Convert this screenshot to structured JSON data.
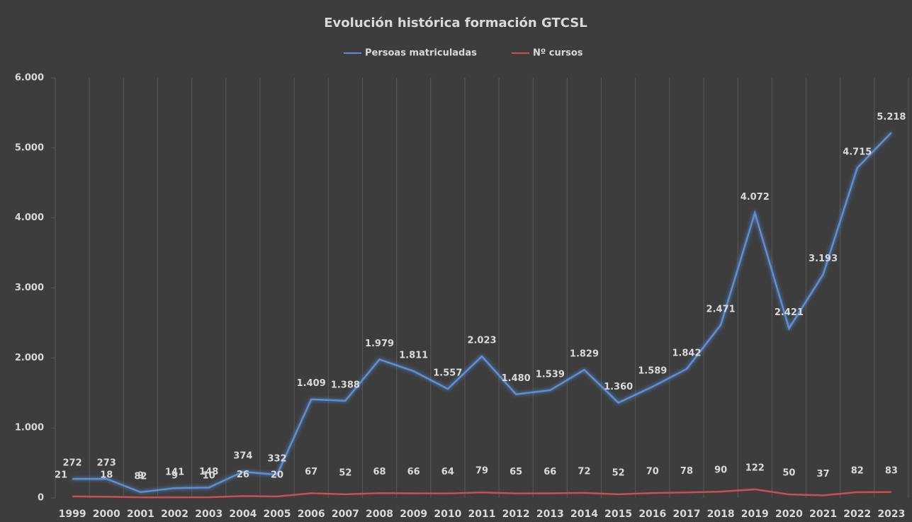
{
  "chart_data": {
    "type": "line",
    "title": "Evolución histórica formación GTCSL",
    "categories": [
      "1999",
      "2000",
      "2001",
      "2002",
      "2003",
      "2004",
      "2005",
      "2006",
      "2007",
      "2008",
      "2009",
      "2010",
      "2011",
      "2012",
      "2013",
      "2014",
      "2015",
      "2016",
      "2017",
      "2018",
      "2019",
      "2020",
      "2021",
      "2022",
      "2023"
    ],
    "series": [
      {
        "name": "Persoas matriculadas",
        "color": "#5b8fd6",
        "values": [
          272,
          273,
          82,
          141,
          148,
          374,
          332,
          1409,
          1388,
          1979,
          1811,
          1557,
          2023,
          1480,
          1539,
          1829,
          1360,
          1589,
          1842,
          2471,
          4072,
          2421,
          3193,
          4715,
          5218
        ],
        "value_labels": [
          "272",
          "273",
          "82",
          "141",
          "148",
          "374",
          "332",
          "1.409",
          "1.388",
          "1.979",
          "1.811",
          "1.557",
          "2.023",
          "1.480",
          "1.539",
          "1.829",
          "1.360",
          "1.589",
          "1.842",
          "2.471",
          "4.072",
          "2.421",
          "3.193",
          "4.715",
          "5.218"
        ]
      },
      {
        "name": "Nº cursos",
        "color": "#c9504d",
        "values": [
          21,
          18,
          9,
          9,
          10,
          26,
          20,
          67,
          52,
          68,
          66,
          64,
          79,
          65,
          66,
          72,
          52,
          70,
          78,
          90,
          122,
          50,
          37,
          82,
          83
        ]
      }
    ],
    "ylim": [
      0,
      6000
    ],
    "yticks": [
      0,
      {
        "value": 1000,
        "label": "1.000"
      },
      {
        "value": 2000,
        "label": "2.000"
      },
      {
        "value": 3000,
        "label": "3.000"
      },
      {
        "value": 4000,
        "label": "4.000"
      },
      {
        "value": 5000,
        "label": "5.000"
      },
      {
        "value": 6000,
        "label": "6.000"
      }
    ],
    "grid": true,
    "legend": "top"
  }
}
